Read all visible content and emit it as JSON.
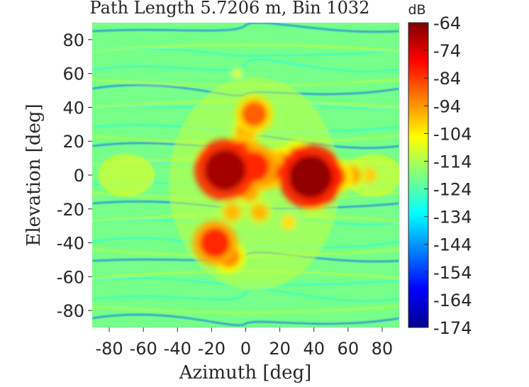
{
  "chart_data": {
    "type": "heatmap",
    "title": "Path Length 5.7206 m, Bin 1032",
    "xlabel": "Azimuth [deg]",
    "ylabel": "Elevation [deg]",
    "xlim": [
      -90,
      90
    ],
    "ylim": [
      -90,
      90
    ],
    "xticks": [
      -80,
      -60,
      -40,
      -20,
      0,
      20,
      40,
      60,
      80
    ],
    "yticks": [
      80,
      60,
      40,
      20,
      0,
      -20,
      -40,
      -60,
      -80
    ],
    "colorbar": {
      "label": "dB",
      "range": [
        -174,
        -64
      ],
      "ticks": [
        -64,
        -74,
        -84,
        -94,
        -104,
        -114,
        -124,
        -134,
        -144,
        -154,
        -164,
        -174
      ],
      "colormap": "jet"
    },
    "background_level_db": -120,
    "hotspots": [
      {
        "az": -12,
        "el": 3,
        "db": -68
      },
      {
        "az": 38,
        "el": -1,
        "db": -66
      },
      {
        "az": -18,
        "el": -40,
        "db": -82
      },
      {
        "az": -10,
        "el": -48,
        "db": -92
      },
      {
        "az": 5,
        "el": 36,
        "db": -88
      },
      {
        "az": 5,
        "el": 5,
        "db": -82
      },
      {
        "az": 12,
        "el": 3,
        "db": -86
      },
      {
        "az": -2,
        "el": 12,
        "db": -86
      },
      {
        "az": 20,
        "el": 6,
        "db": -90
      },
      {
        "az": 52,
        "el": -1,
        "db": -90
      },
      {
        "az": 62,
        "el": 0,
        "db": -96
      },
      {
        "az": 72,
        "el": 0,
        "db": -100
      },
      {
        "az": 30,
        "el": 10,
        "db": -92
      },
      {
        "az": 2,
        "el": -10,
        "db": -96
      },
      {
        "az": -8,
        "el": -22,
        "db": -98
      },
      {
        "az": 8,
        "el": -22,
        "db": -98
      },
      {
        "az": 0,
        "el": 26,
        "db": -96
      },
      {
        "az": -22,
        "el": 10,
        "db": -98
      },
      {
        "az": 40,
        "el": -14,
        "db": -96
      },
      {
        "az": 25,
        "el": -28,
        "db": -102
      },
      {
        "az": -5,
        "el": 60,
        "db": -108
      }
    ]
  }
}
